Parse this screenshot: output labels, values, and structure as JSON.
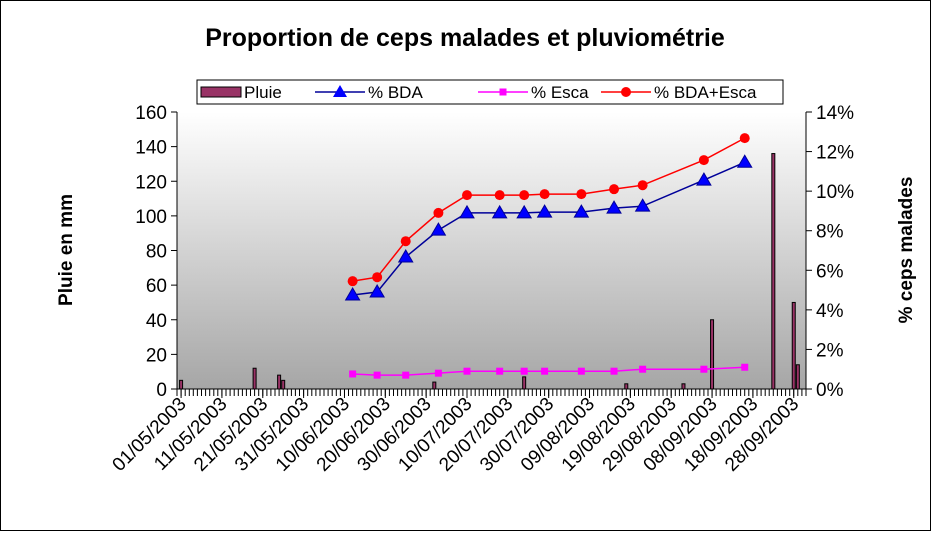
{
  "chart_data": {
    "type": "combo",
    "title": "Proportion de ceps malades et pluviométrie",
    "ylabel": "Pluie en mm",
    "y2label": "% ceps malades",
    "xlim": [
      "30/04/2003",
      "01/10/2003"
    ],
    "xticks": [
      "01/05/2003",
      "11/05/2003",
      "21/05/2003",
      "31/05/2003",
      "10/06/2003",
      "20/06/2003",
      "30/06/2003",
      "10/07/2003",
      "20/07/2003",
      "30/07/2003",
      "09/08/2003",
      "19/08/2003",
      "29/08/2003",
      "08/09/2003",
      "18/09/2003",
      "28/09/2003"
    ],
    "ylim": [
      0,
      160
    ],
    "yticks": [
      0,
      20,
      40,
      60,
      80,
      100,
      120,
      140,
      160
    ],
    "y2lim": [
      0,
      14
    ],
    "y2ticks": [
      {
        "value": 0,
        "label": "0%"
      },
      {
        "value": 2,
        "label": "2%"
      },
      {
        "value": 4,
        "label": "4%"
      },
      {
        "value": 6,
        "label": "6%"
      },
      {
        "value": 8,
        "label": "8%"
      },
      {
        "value": 10,
        "label": "10%"
      },
      {
        "value": 12,
        "label": "12%"
      },
      {
        "value": 14,
        "label": "14%"
      }
    ],
    "legend": "top",
    "series": [
      {
        "name": "Pluie",
        "type": "bar",
        "color": "#993366",
        "x": [
          "01/05/2003",
          "19/05/2003",
          "25/05/2003",
          "26/05/2003",
          "02/07/2003",
          "24/07/2003",
          "18/08/2003",
          "01/09/2003",
          "08/09/2003",
          "23/09/2003",
          "28/09/2003",
          "29/09/2003"
        ],
        "values": [
          5,
          12,
          8,
          5,
          4,
          7,
          3,
          3,
          40,
          136,
          50,
          14
        ]
      },
      {
        "name": "% BDA",
        "type": "line",
        "axis": "y2",
        "color": "#000099",
        "marker_color": "#0000ff",
        "marker": "triangle",
        "x": [
          "12/06/2003",
          "18/06/2003",
          "25/06/2003",
          "03/07/2003",
          "10/07/2003",
          "18/07/2003",
          "24/07/2003",
          "29/07/2003",
          "07/08/2003",
          "15/08/2003",
          "22/08/2003",
          "06/09/2003",
          "16/09/2003"
        ],
        "values": [
          4.75,
          4.9,
          6.67,
          8.03,
          8.9,
          8.9,
          8.9,
          8.94,
          8.94,
          9.14,
          9.24,
          10.56,
          11.46
        ]
      },
      {
        "name": "% Esca",
        "type": "line",
        "axis": "y2",
        "color": "#ff00ff",
        "marker_color": "#ff00ff",
        "marker": "square",
        "x": [
          "12/06/2003",
          "18/06/2003",
          "25/06/2003",
          "03/07/2003",
          "10/07/2003",
          "18/07/2003",
          "24/07/2003",
          "29/07/2003",
          "07/08/2003",
          "15/08/2003",
          "22/08/2003",
          "06/09/2003",
          "16/09/2003"
        ],
        "values": [
          0.76,
          0.7,
          0.7,
          0.8,
          0.9,
          0.9,
          0.9,
          0.9,
          0.9,
          0.9,
          1.0,
          1.0,
          1.1
        ]
      },
      {
        "name": "% BDA+Esca",
        "type": "line",
        "axis": "y2",
        "color": "#ff0000",
        "marker_color": "#ff0000",
        "marker": "circle",
        "x": [
          "12/06/2003",
          "18/06/2003",
          "25/06/2003",
          "03/07/2003",
          "10/07/2003",
          "18/07/2003",
          "24/07/2003",
          "29/07/2003",
          "07/08/2003",
          "15/08/2003",
          "22/08/2003",
          "06/09/2003",
          "16/09/2003"
        ],
        "values": [
          5.45,
          5.65,
          7.47,
          8.9,
          9.8,
          9.8,
          9.8,
          9.85,
          9.85,
          10.1,
          10.3,
          11.57,
          12.68
        ]
      }
    ]
  }
}
